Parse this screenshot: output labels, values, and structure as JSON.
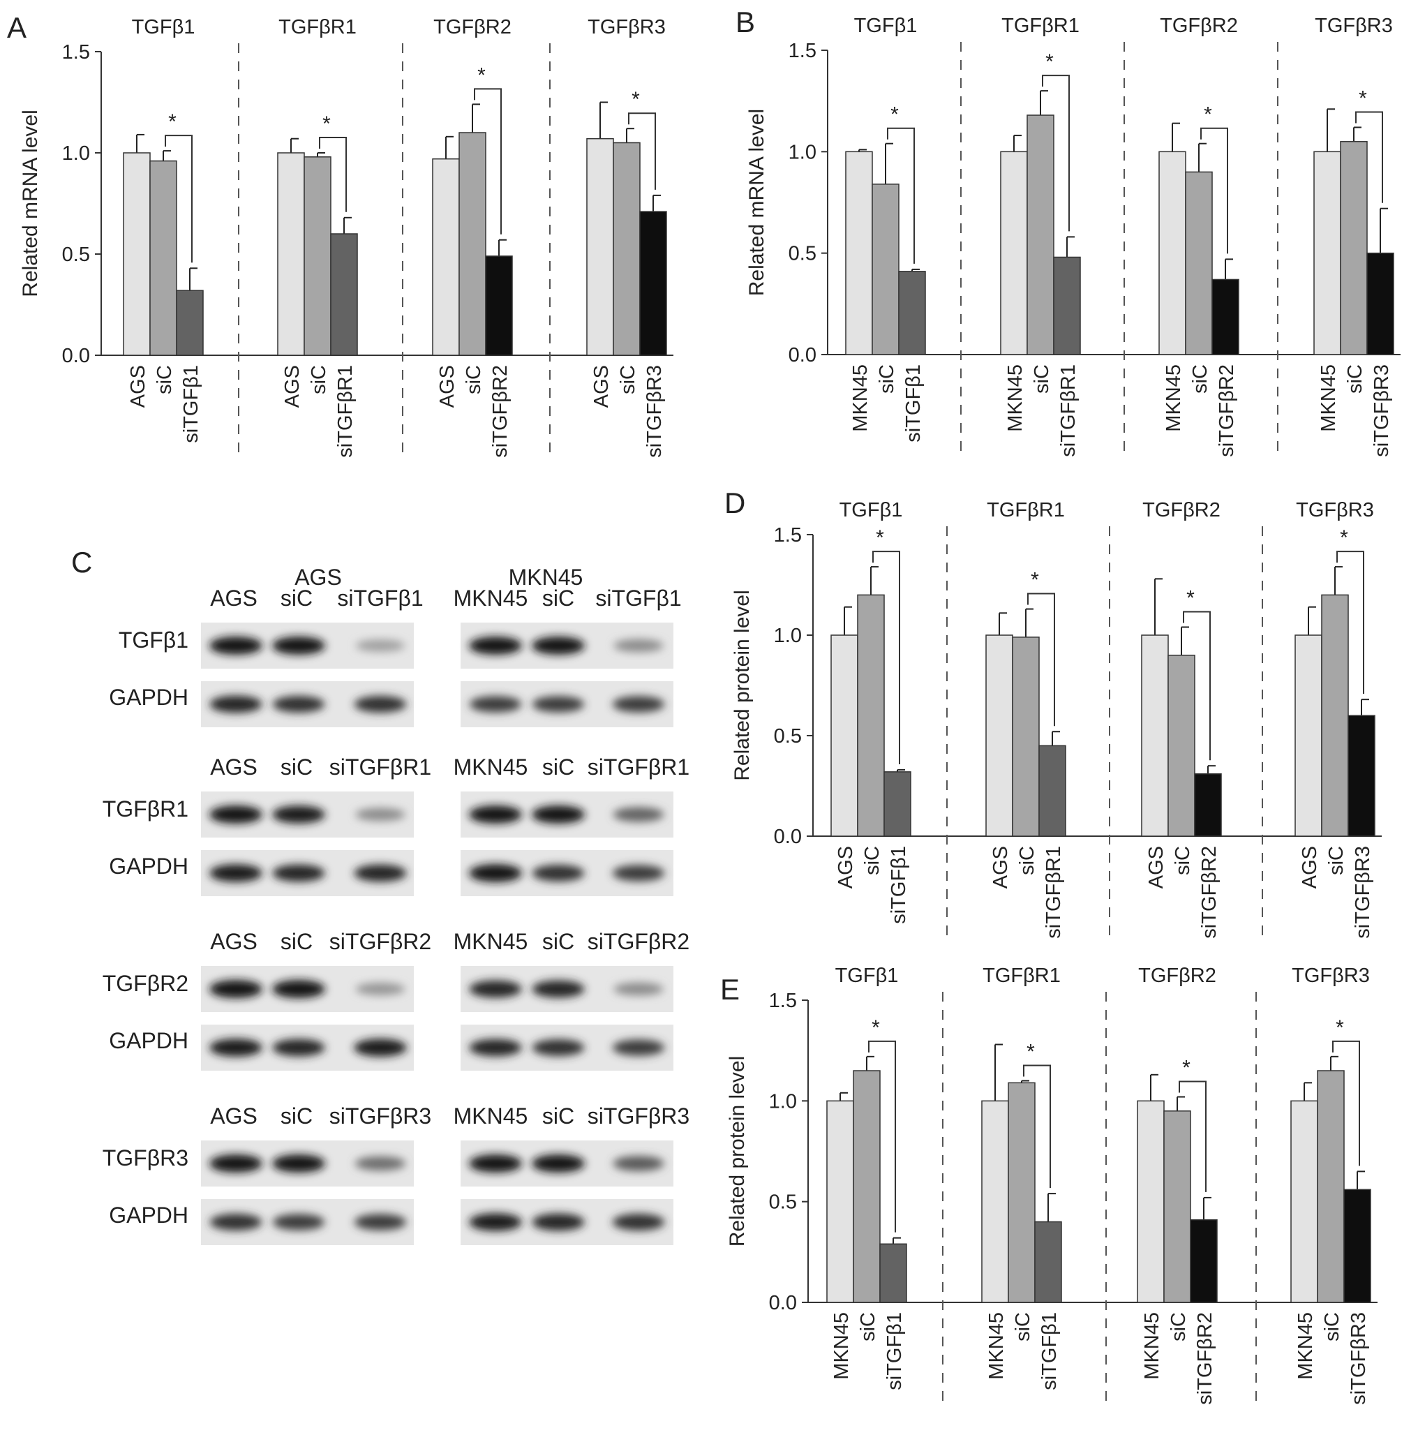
{
  "colors": {
    "light": "#e3e3e3",
    "mid": "#a6a6a6",
    "dark": "#636363",
    "black": "#0e0e0e"
  },
  "chart_data": [
    {
      "panel": "A",
      "type": "bar",
      "ylabel": "Related mRNA level",
      "ylim": [
        0,
        1.5
      ],
      "yticks": [
        "0.0",
        "0.5",
        "1.0",
        "1.5"
      ],
      "significance": "*",
      "groups": [
        {
          "title": "TGFβ1",
          "categories": [
            "AGS",
            "siC",
            "siTGFβ1"
          ],
          "values": [
            1.0,
            0.96,
            0.32
          ],
          "errors": [
            0.09,
            0.05,
            0.11
          ],
          "tones": [
            "light",
            "mid",
            "dark"
          ]
        },
        {
          "title": "TGFβR1",
          "categories": [
            "AGS",
            "siC",
            "siTGFβR1"
          ],
          "values": [
            1.0,
            0.98,
            0.6
          ],
          "errors": [
            0.07,
            0.02,
            0.08
          ],
          "tones": [
            "light",
            "mid",
            "dark"
          ]
        },
        {
          "title": "TGFβR2",
          "categories": [
            "AGS",
            "siC",
            "siTGFβR2"
          ],
          "values": [
            0.97,
            1.1,
            0.49
          ],
          "errors": [
            0.11,
            0.14,
            0.08
          ],
          "tones": [
            "light",
            "mid",
            "black"
          ]
        },
        {
          "title": "TGFβR3",
          "categories": [
            "AGS",
            "siC",
            "siTGFβR3"
          ],
          "values": [
            1.07,
            1.05,
            0.71
          ],
          "errors": [
            0.18,
            0.07,
            0.08
          ],
          "tones": [
            "light",
            "mid",
            "black"
          ]
        }
      ]
    },
    {
      "panel": "B",
      "type": "bar",
      "ylabel": "Related mRNA level",
      "ylim": [
        0,
        1.5
      ],
      "yticks": [
        "0.0",
        "0.5",
        "1.0",
        "1.5"
      ],
      "significance": "*",
      "groups": [
        {
          "title": "TGFβ1",
          "categories": [
            "MKN45",
            "siC",
            "siTGFβ1"
          ],
          "values": [
            1.0,
            0.84,
            0.41
          ],
          "errors": [
            0.01,
            0.2,
            0.01
          ],
          "tones": [
            "light",
            "mid",
            "dark"
          ]
        },
        {
          "title": "TGFβR1",
          "categories": [
            "MKN45",
            "siC",
            "siTGFβR1"
          ],
          "values": [
            1.0,
            1.18,
            0.48
          ],
          "errors": [
            0.08,
            0.12,
            0.1
          ],
          "tones": [
            "light",
            "mid",
            "dark"
          ]
        },
        {
          "title": "TGFβR2",
          "categories": [
            "MKN45",
            "siC",
            "siTGFβR2"
          ],
          "values": [
            1.0,
            0.9,
            0.37
          ],
          "errors": [
            0.14,
            0.14,
            0.1
          ],
          "tones": [
            "light",
            "mid",
            "black"
          ]
        },
        {
          "title": "TGFβR3",
          "categories": [
            "MKN45",
            "siC",
            "siTGFβR3"
          ],
          "values": [
            1.0,
            1.05,
            0.5
          ],
          "errors": [
            0.21,
            0.07,
            0.22
          ],
          "tones": [
            "light",
            "mid",
            "black"
          ]
        }
      ]
    },
    {
      "panel": "D",
      "type": "bar",
      "ylabel": "Related protein level",
      "ylim": [
        0,
        1.5
      ],
      "yticks": [
        "0.0",
        "0.5",
        "1.0",
        "1.5"
      ],
      "significance": "*",
      "groups": [
        {
          "title": "TGFβ1",
          "categories": [
            "AGS",
            "siC",
            "siTGFβ1"
          ],
          "values": [
            1.0,
            1.2,
            0.32
          ],
          "errors": [
            0.14,
            0.14,
            0.01
          ],
          "tones": [
            "light",
            "mid",
            "dark"
          ]
        },
        {
          "title": "TGFβR1",
          "categories": [
            "AGS",
            "siC",
            "siTGFβR1"
          ],
          "values": [
            1.0,
            0.99,
            0.45
          ],
          "errors": [
            0.11,
            0.14,
            0.07
          ],
          "tones": [
            "light",
            "mid",
            "dark"
          ]
        },
        {
          "title": "TGFβR2",
          "categories": [
            "AGS",
            "siC",
            "siTGFβR2"
          ],
          "values": [
            1.0,
            0.9,
            0.31
          ],
          "errors": [
            0.28,
            0.14,
            0.04
          ],
          "tones": [
            "light",
            "mid",
            "black"
          ]
        },
        {
          "title": "TGFβR3",
          "categories": [
            "AGS",
            "siC",
            "siTGFβR3"
          ],
          "values": [
            1.0,
            1.2,
            0.6
          ],
          "errors": [
            0.14,
            0.14,
            0.08
          ],
          "tones": [
            "light",
            "mid",
            "black"
          ]
        }
      ]
    },
    {
      "panel": "E",
      "type": "bar",
      "ylabel": "Related protein level",
      "ylim": [
        0,
        1.5
      ],
      "yticks": [
        "0.0",
        "0.5",
        "1.0",
        "1.5"
      ],
      "significance": "*",
      "groups": [
        {
          "title": "TGFβ1",
          "categories": [
            "MKN45",
            "siC",
            "siTGFβ1"
          ],
          "values": [
            1.0,
            1.15,
            0.29
          ],
          "errors": [
            0.04,
            0.07,
            0.03
          ],
          "tones": [
            "light",
            "mid",
            "dark"
          ]
        },
        {
          "title": "TGFβR1",
          "categories": [
            "MKN45",
            "siC",
            "siTGFβ1"
          ],
          "values": [
            1.0,
            1.09,
            0.4
          ],
          "errors": [
            0.28,
            0.01,
            0.14
          ],
          "tones": [
            "light",
            "mid",
            "dark"
          ]
        },
        {
          "title": "TGFβR2",
          "categories": [
            "MKN45",
            "siC",
            "siTGFβR2"
          ],
          "values": [
            1.0,
            0.95,
            0.41
          ],
          "errors": [
            0.13,
            0.07,
            0.11
          ],
          "tones": [
            "light",
            "mid",
            "black"
          ]
        },
        {
          "title": "TGFβR3",
          "categories": [
            "MKN45",
            "siC",
            "siTGFβR3"
          ],
          "values": [
            1.0,
            1.15,
            0.56
          ],
          "errors": [
            0.09,
            0.07,
            0.09
          ],
          "tones": [
            "light",
            "mid",
            "black"
          ]
        }
      ]
    }
  ],
  "western_blot": {
    "panel": "C",
    "cell_lines": [
      "AGS",
      "MKN45"
    ],
    "blocks": [
      {
        "headers": [
          [
            "AGS",
            "siC",
            "siTGFβ1"
          ],
          [
            "MKN45",
            "siC",
            "siTGFβ1"
          ]
        ],
        "target": "TGFβ1",
        "loading": "GAPDH",
        "target_intensity": [
          [
            1.0,
            1.0,
            0.3
          ],
          [
            1.0,
            1.0,
            0.4
          ]
        ],
        "loading_intensity": [
          [
            0.9,
            0.85,
            0.85
          ],
          [
            0.8,
            0.8,
            0.8
          ]
        ]
      },
      {
        "headers": [
          [
            "AGS",
            "siC",
            "siTGFβR1"
          ],
          [
            "MKN45",
            "siC",
            "siTGFβR1"
          ]
        ],
        "target": "TGFβR1",
        "loading": "GAPDH",
        "target_intensity": [
          [
            1.0,
            0.95,
            0.4
          ],
          [
            1.0,
            1.0,
            0.6
          ]
        ],
        "loading_intensity": [
          [
            0.95,
            0.9,
            0.9
          ],
          [
            1.0,
            0.85,
            0.8
          ]
        ]
      },
      {
        "headers": [
          [
            "AGS",
            "siC",
            "siTGFβR2"
          ],
          [
            "MKN45",
            "siC",
            "siTGFβR2"
          ]
        ],
        "target": "TGFβR2",
        "loading": "GAPDH",
        "target_intensity": [
          [
            1.0,
            1.0,
            0.35
          ],
          [
            0.9,
            0.9,
            0.4
          ]
        ],
        "loading_intensity": [
          [
            0.95,
            0.9,
            0.95
          ],
          [
            0.9,
            0.85,
            0.8
          ]
        ]
      },
      {
        "headers": [
          [
            "AGS",
            "siC",
            "siTGFβR3"
          ],
          [
            "MKN45",
            "siC",
            "siTGFβR3"
          ]
        ],
        "target": "TGFβR3",
        "loading": "GAPDH",
        "target_intensity": [
          [
            1.0,
            1.0,
            0.55
          ],
          [
            1.0,
            1.0,
            0.65
          ]
        ],
        "loading_intensity": [
          [
            0.85,
            0.8,
            0.8
          ],
          [
            0.95,
            0.9,
            0.85
          ]
        ]
      }
    ]
  }
}
